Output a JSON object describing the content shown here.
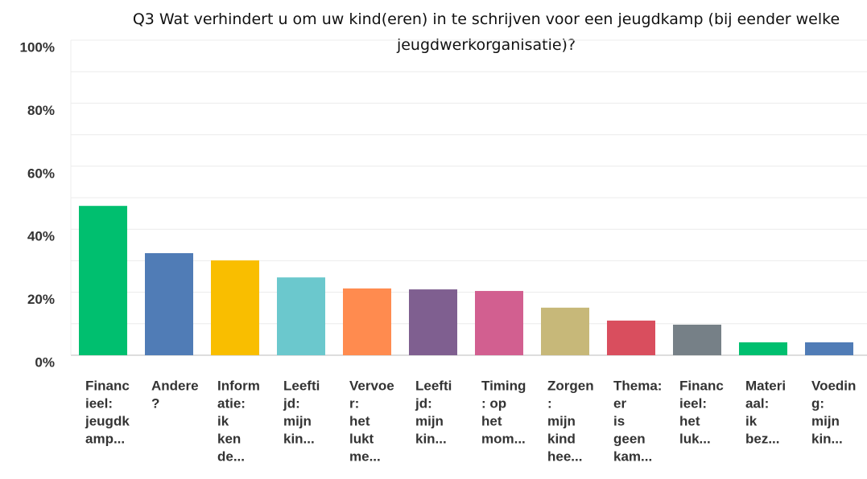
{
  "chart_data": {
    "type": "bar",
    "title": "Q3 Wat verhindert u om uw kind(eren) in te schrijven voor een jeugdkamp (bij eender welke jeugdwerkorganisatie)?",
    "categories": [
      [
        "Financ",
        "ieel:",
        "jeugdk",
        "amp..."
      ],
      [
        "Andere",
        "?"
      ],
      [
        "Inform",
        "atie:",
        "ik",
        "ken",
        "de..."
      ],
      [
        "Leefti",
        "jd:",
        "mijn",
        "kin..."
      ],
      [
        "Vervoe",
        "r:",
        "het",
        "lukt",
        "me..."
      ],
      [
        "Leefti",
        "jd:",
        "mijn",
        "kin..."
      ],
      [
        "Timing",
        ": op",
        "het",
        "mom..."
      ],
      [
        "Zorgen",
        ":",
        "mijn",
        "kind",
        "hee..."
      ],
      [
        "Thema:",
        "er",
        "is",
        "geen",
        "kam..."
      ],
      [
        "Financ",
        "ieel:",
        "het",
        "luk..."
      ],
      [
        "Materi",
        "aal:",
        "ik",
        "bez..."
      ],
      [
        "Voedin",
        "g:",
        "mijn",
        "kin..."
      ]
    ],
    "values": [
      47.4,
      32.4,
      30.1,
      24.7,
      21.2,
      20.9,
      20.4,
      15.1,
      11.0,
      9.7,
      4.1,
      4.1
    ],
    "colors": [
      "#00bf6f",
      "#507cb6",
      "#f9be00",
      "#6bc8cd",
      "#ff8b4f",
      "#7f5f90",
      "#d25f90",
      "#c7b879",
      "#d94e5e",
      "#768087",
      "#00bf6f",
      "#507cb6"
    ],
    "ylim": [
      0,
      100
    ],
    "yticks": [
      {
        "value": 0,
        "label": "0%"
      },
      {
        "value": 20,
        "label": "20%"
      },
      {
        "value": 40,
        "label": "40%"
      },
      {
        "value": 60,
        "label": "60%"
      },
      {
        "value": 80,
        "label": "80%"
      },
      {
        "value": 100,
        "label": "100%"
      }
    ],
    "minor_yticks": [
      10,
      30,
      50,
      70,
      90
    ],
    "grid": true
  }
}
